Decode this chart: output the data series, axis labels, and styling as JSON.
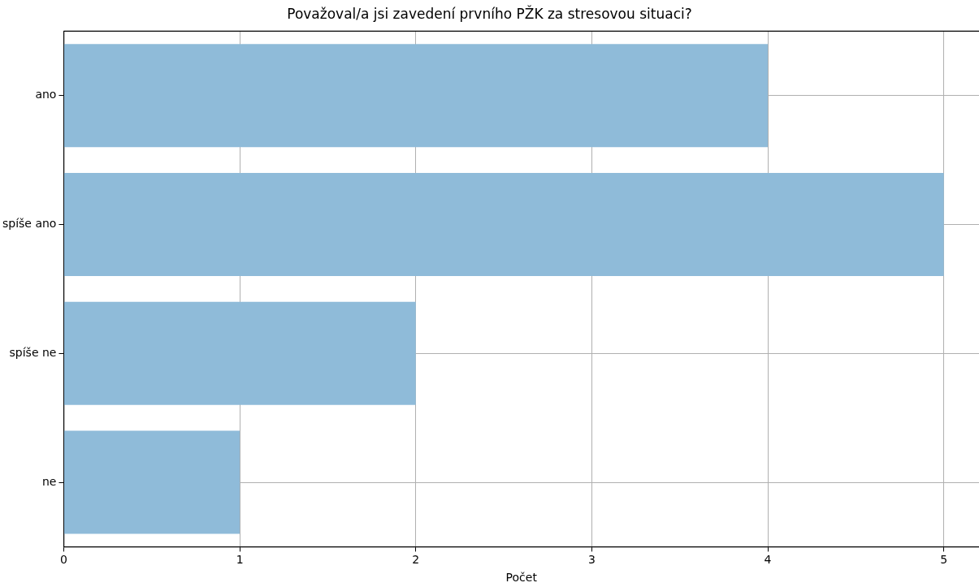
{
  "chart_data": {
    "type": "bar",
    "orientation": "horizontal",
    "title": "Považoval/a jsi zavedení prvního PŽK za stresovou situaci?",
    "xlabel": "Počet",
    "categories": [
      "ano",
      "spíše ano",
      "spíše ne",
      "ne"
    ],
    "values": [
      4,
      5,
      2,
      1
    ],
    "color": "#8fbbd9",
    "xlim": [
      0,
      5.2
    ],
    "xticks": [
      0,
      1,
      2,
      3,
      4,
      5
    ],
    "grid": true
  }
}
